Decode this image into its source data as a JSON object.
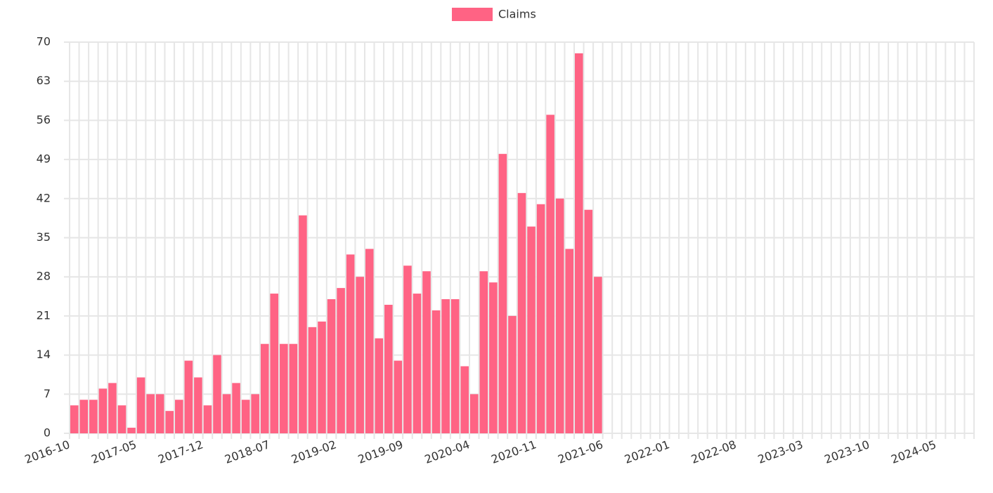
{
  "chart_data": {
    "type": "bar",
    "legend": "top",
    "series": [
      {
        "name": "Claims",
        "color": "#ff6384",
        "values": [
          5,
          6,
          6,
          8,
          9,
          5,
          1,
          10,
          7,
          7,
          4,
          6,
          13,
          10,
          5,
          14,
          7,
          9,
          6,
          7,
          16,
          25,
          16,
          16,
          39,
          19,
          20,
          24,
          26,
          32,
          28,
          33,
          17,
          23,
          13,
          30,
          25,
          29,
          22,
          24,
          24,
          12,
          7,
          29,
          27,
          50,
          21,
          43,
          37,
          41,
          57,
          42,
          33,
          68,
          40,
          28,
          null,
          null,
          null,
          null,
          null,
          null,
          null,
          null,
          null,
          null,
          null,
          null,
          null,
          null,
          null,
          null,
          null,
          null,
          null,
          null,
          null,
          null,
          null,
          null,
          null,
          null,
          null,
          null,
          null,
          null,
          null,
          null,
          null,
          null,
          null,
          null,
          null,
          null,
          null
        ]
      }
    ],
    "categories": [
      "2016-10",
      null,
      null,
      null,
      null,
      null,
      null,
      "2017-05",
      null,
      null,
      null,
      null,
      null,
      null,
      "2017-12",
      null,
      null,
      null,
      null,
      null,
      null,
      "2018-07",
      null,
      null,
      null,
      null,
      null,
      null,
      "2019-02",
      null,
      null,
      null,
      null,
      null,
      null,
      "2019-09",
      null,
      null,
      null,
      null,
      null,
      null,
      "2020-04",
      null,
      null,
      null,
      null,
      null,
      null,
      "2020-11",
      null,
      null,
      null,
      null,
      null,
      null,
      "2021-06",
      null,
      null,
      null,
      null,
      null,
      null,
      "2022-01",
      null,
      null,
      null,
      null,
      null,
      null,
      "2022-08",
      null,
      null,
      null,
      null,
      null,
      null,
      "2023-03",
      null,
      null,
      null,
      null,
      null,
      null,
      "2023-10",
      null,
      null,
      null,
      null,
      null,
      null,
      "2024-05",
      null,
      null,
      null
    ],
    "ylim": [
      0,
      70
    ],
    "yticks": [
      0,
      7,
      14,
      21,
      28,
      35,
      42,
      49,
      56,
      63,
      70
    ],
    "grid": true
  }
}
